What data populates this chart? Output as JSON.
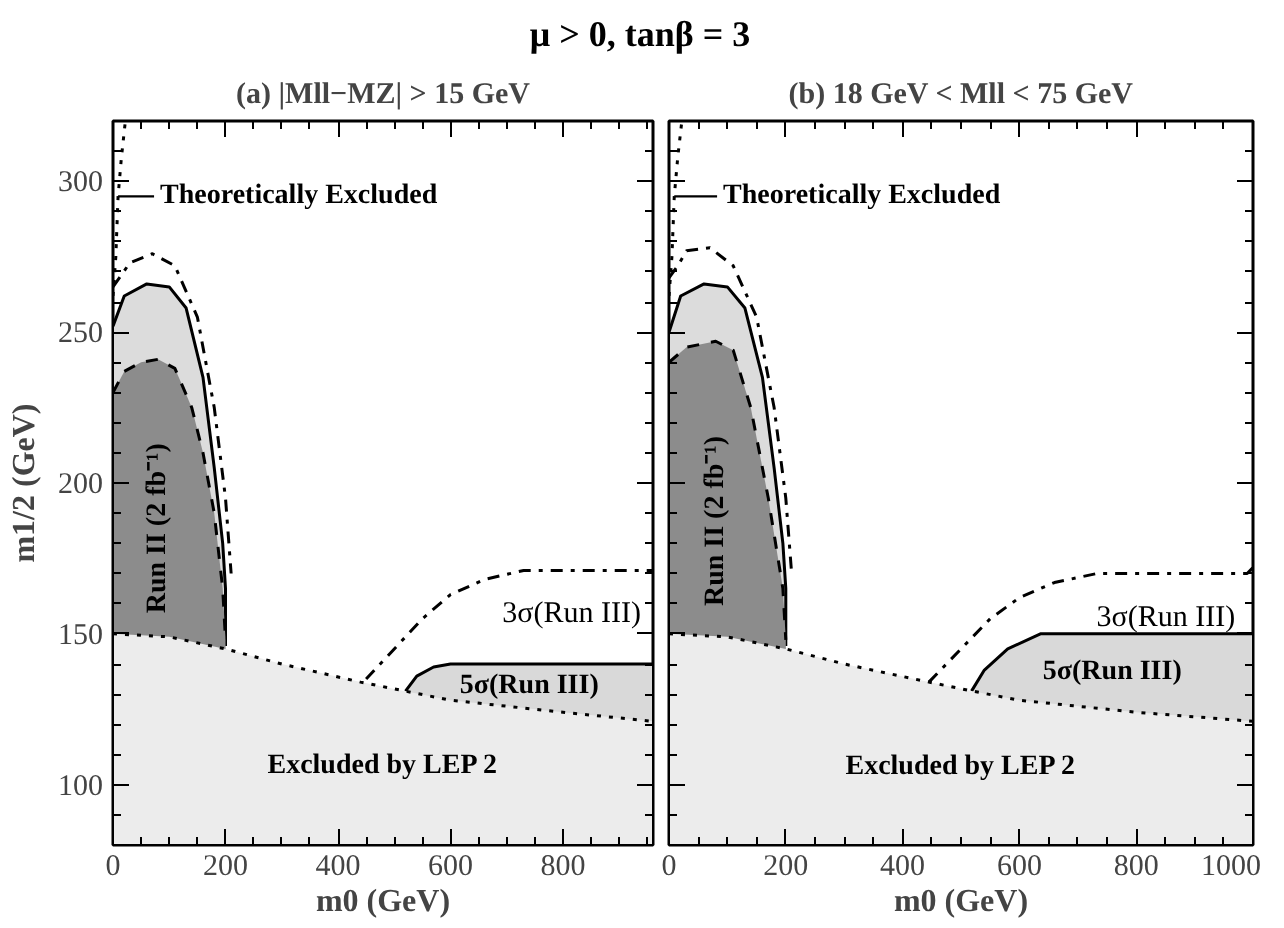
{
  "chart_data": [
    {
      "type": "area",
      "title": "μ > 0, tanβ = 3",
      "subtitle": "(a) |Mll−MZ| > 15 GeV",
      "xlabel": "m0 (GeV)",
      "ylabel": "m1/2 (GeV)",
      "xlim": [
        0,
        960
      ],
      "ylim": [
        80,
        320
      ],
      "xticks": [
        0,
        200,
        400,
        600,
        800
      ],
      "yticks": [
        100,
        150,
        200,
        250,
        300
      ],
      "annotations": [
        {
          "text": "Theoretically Excluded",
          "x": 9,
          "y": 295
        },
        {
          "text": "3σ(Run III)",
          "x": 960,
          "y": 171
        }
      ],
      "series": [
        {
          "color": "#dcdcdc",
          "line_style": "solid",
          "x": [
            0,
            20,
            60,
            100,
            130,
            160,
            180,
            195,
            200,
            200
          ],
          "values": [
            252,
            262,
            266,
            265,
            258,
            235,
            205,
            180,
            165,
            146
          ]
        },
        {
          "name": "Run II (2 fb⁻¹)",
          "color": "#8c8c8c",
          "line_style": "dashed",
          "x": [
            0,
            20,
            50,
            80,
            110,
            140,
            160,
            180,
            195,
            200
          ],
          "values": [
            230,
            237,
            240,
            241,
            238,
            225,
            210,
            190,
            165,
            148
          ]
        },
        {
          "name": "5σ(Run III)",
          "color": "#d9d9d9",
          "line_style": "solid",
          "x": [
            520,
            540,
            570,
            600,
            700,
            800,
            960
          ],
          "values": [
            131,
            136,
            139,
            140,
            140,
            140,
            140
          ]
        },
        {
          "name": "Excluded by LEP 2",
          "color": "#ececec",
          "line_style": "dotted",
          "x": [
            0,
            100,
            200,
            300,
            440,
            520,
            600,
            700,
            800,
            960
          ],
          "values": [
            150,
            149,
            145,
            140,
            134,
            131,
            128,
            126,
            124,
            121
          ]
        },
        {
          "type": "line",
          "color": "#000000",
          "line_style": "dotted",
          "x": [
            0,
            5,
            9,
            15,
            22
          ],
          "values": [
            262,
            275,
            295,
            308,
            320
          ]
        },
        {
          "type": "line",
          "color": "#000000",
          "line_style": "dashdot",
          "x": [
            0,
            30,
            70,
            110,
            150,
            180,
            200,
            210
          ],
          "values": [
            265,
            273,
            276,
            272,
            255,
            225,
            195,
            170
          ]
        },
        {
          "type": "line",
          "color": "#000000",
          "line_style": "dashdot",
          "x": [
            450,
            500,
            550,
            600,
            660,
            730,
            960
          ],
          "values": [
            135,
            145,
            155,
            163,
            168,
            171,
            171
          ]
        }
      ]
    },
    {
      "type": "area",
      "subtitle": "(b) 18 GeV < Mll < 75 GeV",
      "xlabel": "m0 (GeV)",
      "xlim": [
        0,
        1000
      ],
      "ylim": [
        80,
        320
      ],
      "xticks": [
        0,
        200,
        400,
        600,
        800,
        1000
      ],
      "yticks": [
        100,
        150,
        200,
        250,
        300
      ],
      "tick_labels": "x",
      "annotations": [
        {
          "text": "Theoretically Excluded",
          "x": 9,
          "y": 295
        },
        {
          "text": "3σ(Run III)",
          "x": 990,
          "y": 170
        }
      ],
      "series": [
        {
          "color": "#dcdcdc",
          "line_style": "solid",
          "x": [
            0,
            20,
            60,
            100,
            130,
            160,
            180,
            195,
            200,
            200
          ],
          "values": [
            250,
            262,
            266,
            265,
            258,
            235,
            205,
            180,
            165,
            146
          ]
        },
        {
          "name": "Run II (2 fb⁻¹)",
          "color": "#8c8c8c",
          "line_style": "dashed",
          "x": [
            0,
            30,
            80,
            110,
            140,
            170,
            195,
            200
          ],
          "values": [
            240,
            245,
            247,
            244,
            225,
            195,
            165,
            148
          ]
        },
        {
          "name": "5σ(Run III)",
          "color": "#d9d9d9",
          "line_style": "solid",
          "x": [
            518,
            540,
            580,
            636,
            700,
            800,
            1000
          ],
          "values": [
            131,
            138,
            145,
            150,
            150,
            150,
            150
          ]
        },
        {
          "name": "Excluded by LEP 2",
          "color": "#ececec",
          "line_style": "dotted",
          "x": [
            0,
            100,
            200,
            300,
            445,
            520,
            600,
            700,
            800,
            1000
          ],
          "values": [
            150,
            149,
            145,
            140,
            134,
            131,
            128,
            126,
            124,
            121
          ]
        },
        {
          "type": "line",
          "color": "#000000",
          "line_style": "dotted",
          "x": [
            0,
            5,
            9,
            15,
            22
          ],
          "values": [
            262,
            275,
            295,
            308,
            320
          ]
        },
        {
          "type": "line",
          "color": "#000000",
          "line_style": "dashdot",
          "x": [
            0,
            15,
            30,
            70,
            110,
            150,
            180,
            200,
            210
          ],
          "values": [
            268,
            272,
            277,
            278,
            272,
            255,
            225,
            195,
            170
          ]
        },
        {
          "type": "line",
          "color": "#000000",
          "line_style": "dashdot",
          "x": [
            445,
            500,
            550,
            600,
            660,
            733,
            990,
            1000
          ],
          "values": [
            134,
            145,
            155,
            162,
            167,
            170,
            170,
            172
          ]
        }
      ]
    }
  ]
}
